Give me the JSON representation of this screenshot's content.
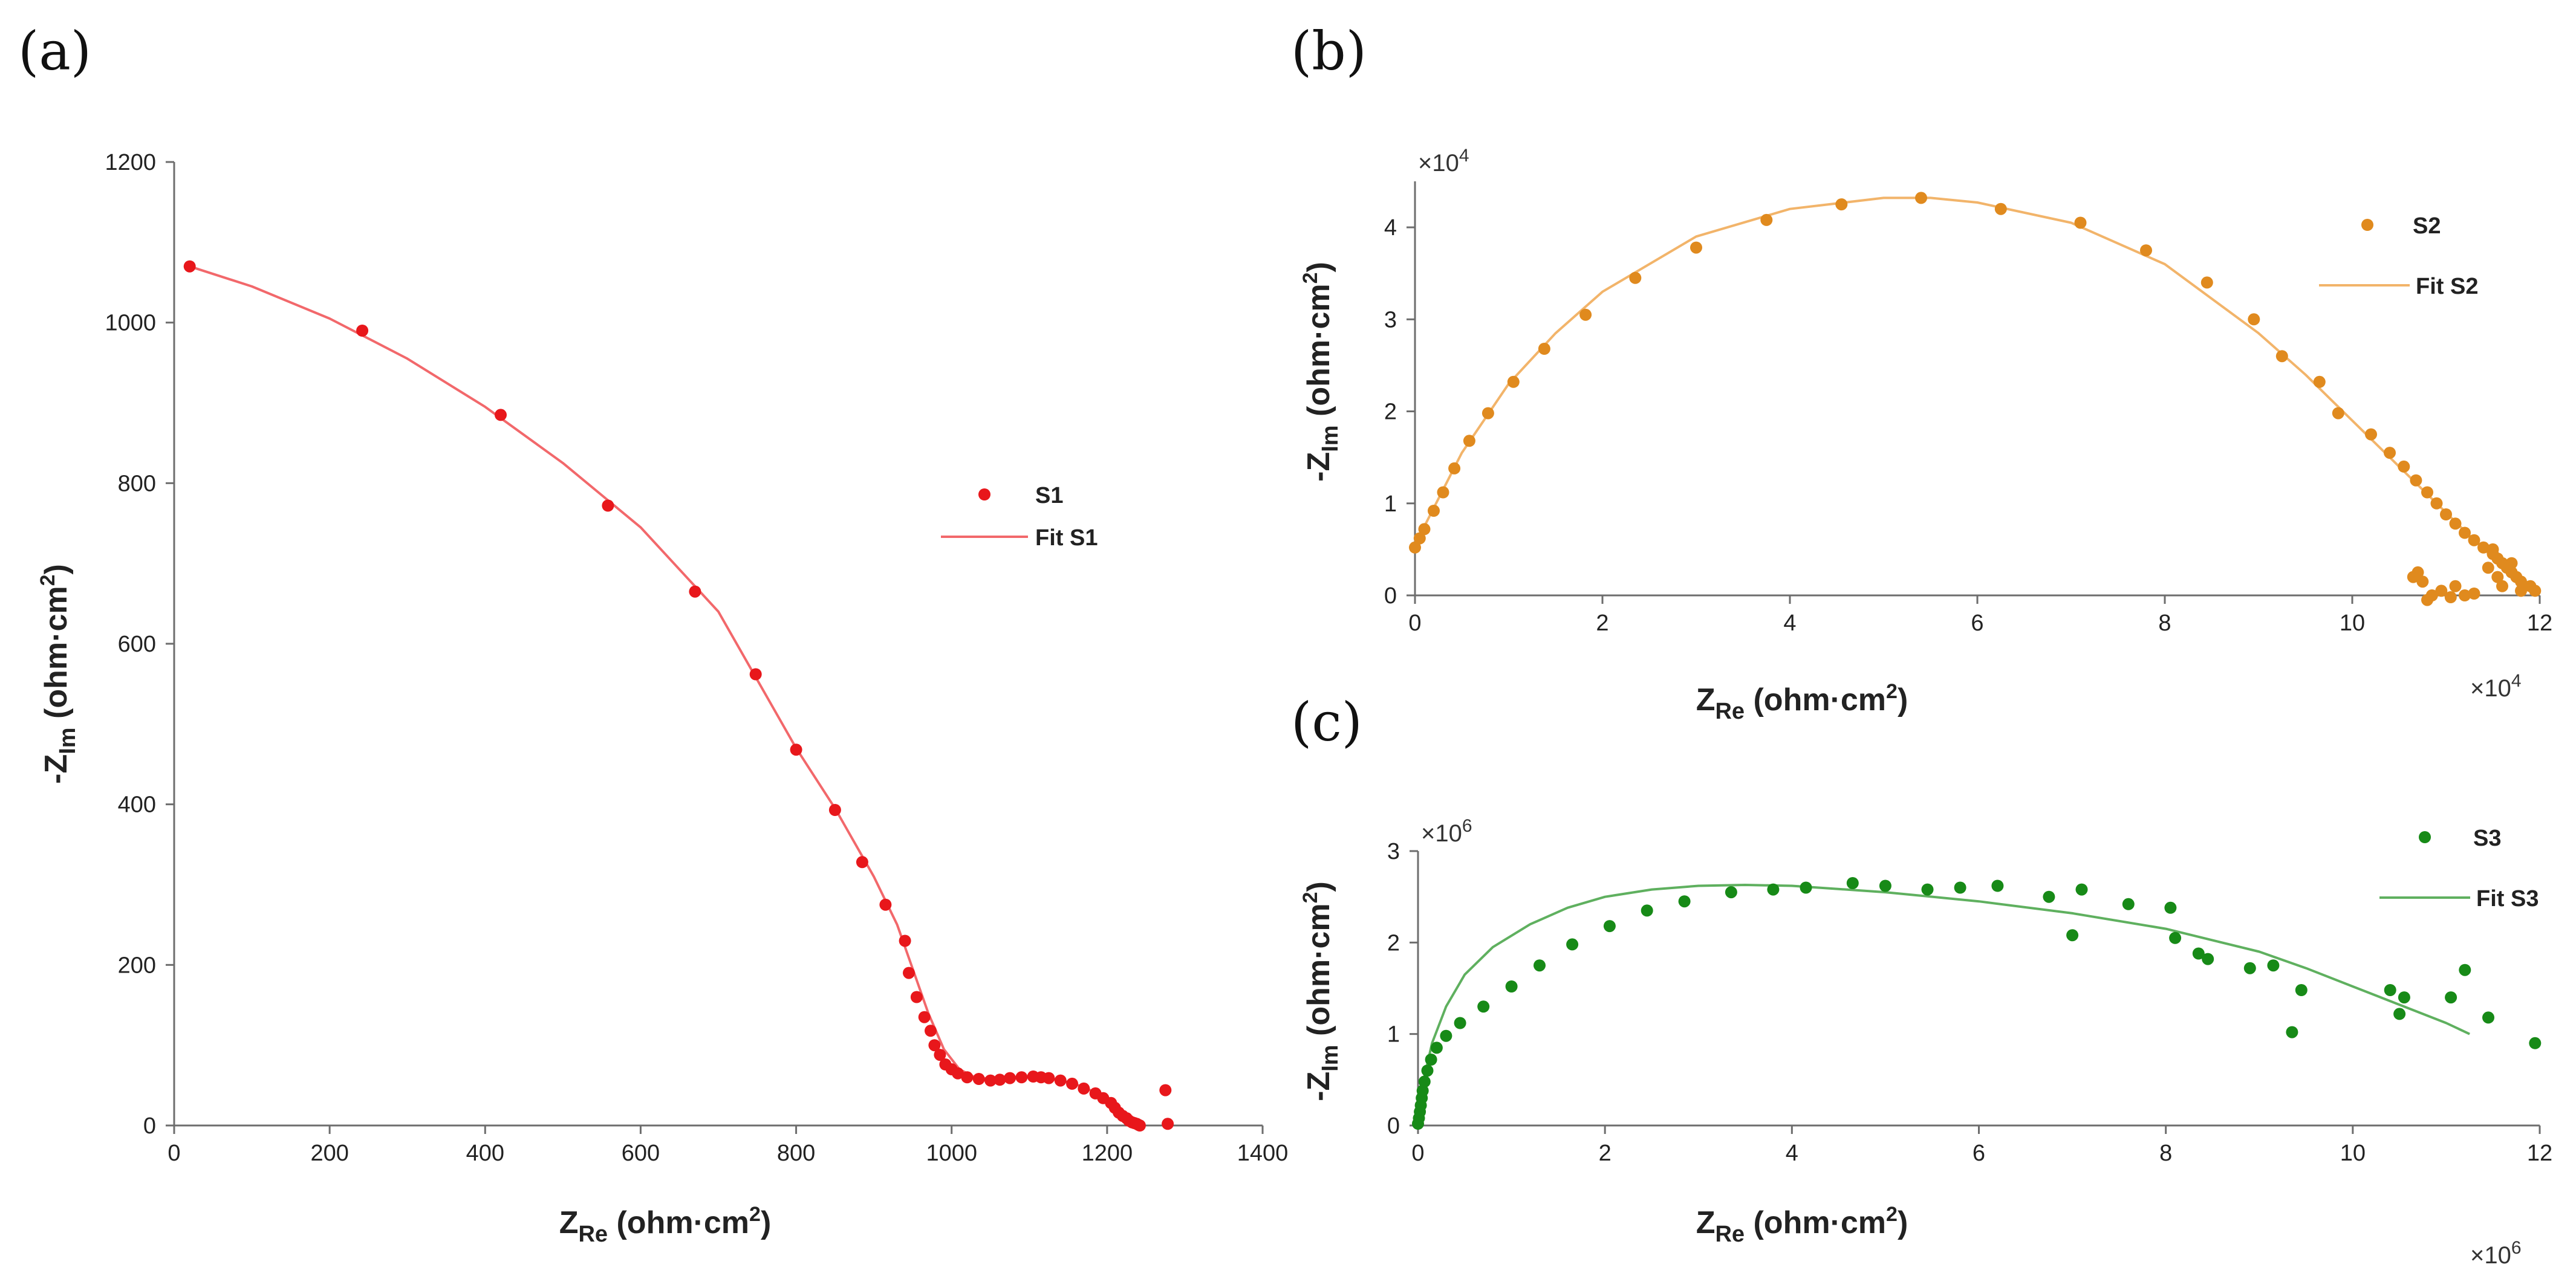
{
  "chart_data": [
    {
      "type": "scatter",
      "panel_label": "(a)",
      "xlabel": "Z",
      "xlabel_sub": "Re",
      "xlabel_unit": " (ohm·cm",
      "xlabel_unit_sup": "2",
      "xlabel_close": ")",
      "ylabel": "-Z",
      "ylabel_sub": "Im",
      "ylabel_unit": " (ohm·cm",
      "ylabel_unit_sup": "2",
      "ylabel_close": ")",
      "xlim": [
        0,
        1400
      ],
      "ylim": [
        0,
        1200
      ],
      "xticks": [
        0,
        200,
        400,
        600,
        800,
        1000,
        1200,
        1400
      ],
      "yticks": [
        0,
        200,
        400,
        600,
        800,
        1000,
        1200
      ],
      "x_multiplier": "",
      "y_multiplier": "",
      "legend_position": "center-right",
      "series": [
        {
          "name": "S1",
          "kind": "points",
          "color": "#e8171b",
          "x": [
            20,
            242,
            420,
            558,
            670,
            748,
            800,
            850,
            885,
            915,
            940,
            945,
            955,
            965,
            973,
            978,
            985,
            992,
            1000,
            1008,
            1020,
            1035,
            1050,
            1062,
            1075,
            1090,
            1105,
            1115,
            1125,
            1140,
            1155,
            1170,
            1185,
            1195,
            1205,
            1210,
            1215,
            1220,
            1225,
            1228,
            1232,
            1235,
            1238,
            1240,
            1242,
            1275,
            1278
          ],
          "y": [
            1070,
            990,
            885,
            772,
            665,
            562,
            468,
            393,
            328,
            275,
            230,
            190,
            160,
            135,
            118,
            100,
            88,
            76,
            70,
            65,
            60,
            58,
            56,
            57,
            59,
            60,
            61,
            60,
            59,
            56,
            52,
            46,
            40,
            34,
            28,
            22,
            16,
            12,
            9,
            6,
            4,
            3,
            2,
            1,
            0,
            44,
            2
          ]
        },
        {
          "name": "Fit S1",
          "kind": "line",
          "color": "#f2686b",
          "x": [
            20,
            100,
            200,
            300,
            400,
            500,
            600,
            700,
            800,
            850,
            900,
            930,
            950,
            970,
            990,
            1010,
            1030,
            1050,
            1070,
            1090,
            1110,
            1130,
            1150,
            1170,
            1190,
            1210,
            1230,
            1240
          ],
          "y": [
            1070,
            1045,
            1005,
            955,
            895,
            825,
            745,
            640,
            470,
            395,
            310,
            250,
            195,
            140,
            95,
            70,
            60,
            58,
            58,
            60,
            60,
            58,
            54,
            48,
            38,
            25,
            10,
            2
          ]
        }
      ]
    },
    {
      "type": "scatter",
      "panel_label": "(b)",
      "xlabel": "Z",
      "xlabel_sub": "Re",
      "xlabel_unit": " (ohm·cm",
      "xlabel_unit_sup": "2",
      "xlabel_close": ")",
      "ylabel": "-Z",
      "ylabel_sub": "Im",
      "ylabel_unit": " (ohm·cm",
      "ylabel_unit_sup": "2",
      "ylabel_close": ")",
      "xlim": [
        0,
        12
      ],
      "ylim": [
        0,
        4.5
      ],
      "xticks": [
        0,
        2,
        4,
        6,
        8,
        10,
        12
      ],
      "yticks": [
        0,
        1,
        2,
        3,
        4
      ],
      "x_multiplier": "×10",
      "x_multiplier_exp": "4",
      "y_multiplier": "×10",
      "y_multiplier_exp": "4",
      "legend_position": "top-right",
      "series": [
        {
          "name": "S2",
          "kind": "points",
          "color": "#e08a1e",
          "x": [
            0,
            0.05,
            0.1,
            0.2,
            0.3,
            0.42,
            0.58,
            0.78,
            1.05,
            1.38,
            1.82,
            2.35,
            3.0,
            3.75,
            4.55,
            5.4,
            6.25,
            7.1,
            7.8,
            8.45,
            8.95,
            9.25,
            9.65,
            9.85,
            10.2,
            10.4,
            10.55,
            10.68,
            10.8,
            10.9,
            11.0,
            11.1,
            11.2,
            11.3,
            11.4,
            11.5,
            11.55,
            11.6,
            11.65,
            11.7,
            11.75,
            11.8,
            11.9,
            11.95,
            11.5,
            11.45,
            11.55,
            11.6,
            11.7,
            11.8,
            11.1,
            11.2,
            10.7,
            10.75,
            10.85,
            10.8,
            10.95,
            10.65,
            11.05,
            11.3
          ],
          "y": [
            0.52,
            0.62,
            0.72,
            0.92,
            1.12,
            1.38,
            1.68,
            1.98,
            2.32,
            2.68,
            3.05,
            3.45,
            3.78,
            4.08,
            4.25,
            4.32,
            4.2,
            4.05,
            3.75,
            3.4,
            3.0,
            2.6,
            2.32,
            1.98,
            1.75,
            1.55,
            1.4,
            1.25,
            1.12,
            1.0,
            0.88,
            0.78,
            0.68,
            0.6,
            0.52,
            0.45,
            0.4,
            0.35,
            0.3,
            0.25,
            0.2,
            0.15,
            0.1,
            0.05,
            0.5,
            0.3,
            0.2,
            0.1,
            0.35,
            0.05,
            0.1,
            0.0,
            0.25,
            0.15,
            0.0,
            -0.05,
            0.05,
            0.2,
            -0.02,
            0.02
          ]
        },
        {
          "name": "Fit S2",
          "kind": "line",
          "color": "#f2b46a",
          "x": [
            0,
            0.2,
            0.5,
            1.0,
            1.5,
            2.0,
            3.0,
            4.0,
            5.0,
            5.5,
            6.0,
            7.0,
            8.0,
            9.0,
            9.5,
            10.0,
            10.5,
            11.0,
            11.3,
            11.6,
            11.9
          ],
          "y": [
            0.55,
            0.95,
            1.55,
            2.3,
            2.85,
            3.3,
            3.9,
            4.2,
            4.32,
            4.32,
            4.27,
            4.05,
            3.6,
            2.85,
            2.4,
            1.9,
            1.4,
            0.9,
            0.6,
            0.32,
            0.05
          ]
        }
      ]
    },
    {
      "type": "scatter",
      "panel_label": "(c)",
      "xlabel": "Z",
      "xlabel_sub": "Re",
      "xlabel_unit": " (ohm·cm",
      "xlabel_unit_sup": "2",
      "xlabel_close": ")",
      "ylabel": "-Z",
      "ylabel_sub": "Im",
      "ylabel_unit": " (ohm·cm",
      "ylabel_unit_sup": "2",
      "ylabel_close": ")",
      "xlim": [
        0,
        12
      ],
      "ylim": [
        0,
        3
      ],
      "xticks": [
        0,
        2,
        4,
        6,
        8,
        10,
        12
      ],
      "yticks": [
        0,
        1,
        2,
        3
      ],
      "x_multiplier": "×10",
      "x_multiplier_exp": "6",
      "y_multiplier": "×10",
      "y_multiplier_exp": "6",
      "legend_position": "top-right",
      "series": [
        {
          "name": "S3",
          "kind": "points",
          "color": "#178a17",
          "x": [
            0.0,
            0.01,
            0.02,
            0.03,
            0.04,
            0.05,
            0.07,
            0.1,
            0.14,
            0.2,
            0.3,
            0.45,
            0.7,
            1.0,
            1.3,
            1.65,
            2.05,
            2.45,
            2.85,
            3.35,
            3.8,
            4.15,
            4.65,
            5.0,
            5.45,
            5.8,
            6.2,
            6.75,
            7.1,
            7.6,
            8.05,
            7.0,
            8.1,
            8.35,
            8.45,
            8.9,
            9.15,
            9.45,
            9.35,
            10.4,
            10.5,
            10.55,
            11.05,
            11.2,
            11.45,
            11.95
          ],
          "y": [
            0.02,
            0.08,
            0.15,
            0.22,
            0.3,
            0.38,
            0.48,
            0.6,
            0.72,
            0.85,
            0.98,
            1.12,
            1.3,
            1.52,
            1.75,
            1.98,
            2.18,
            2.35,
            2.45,
            2.55,
            2.58,
            2.6,
            2.65,
            2.62,
            2.58,
            2.6,
            2.62,
            2.5,
            2.58,
            2.42,
            2.38,
            2.08,
            2.05,
            1.88,
            1.82,
            1.72,
            1.75,
            1.48,
            1.02,
            1.48,
            1.22,
            1.4,
            1.4,
            1.7,
            1.18,
            0.9
          ]
        },
        {
          "name": "Fit S3",
          "kind": "line",
          "color": "#5fb05f",
          "x": [
            0,
            0.05,
            0.15,
            0.3,
            0.5,
            0.8,
            1.2,
            1.6,
            2.0,
            2.5,
            3.0,
            3.5,
            4.0,
            5.0,
            6.0,
            7.0,
            8.0,
            9.0,
            9.5,
            10.0,
            10.5,
            11.0,
            11.25
          ],
          "y": [
            0,
            0.45,
            0.9,
            1.3,
            1.65,
            1.95,
            2.2,
            2.38,
            2.5,
            2.58,
            2.62,
            2.63,
            2.62,
            2.55,
            2.45,
            2.32,
            2.15,
            1.9,
            1.72,
            1.52,
            1.32,
            1.12,
            1.0
          ]
        }
      ]
    }
  ]
}
